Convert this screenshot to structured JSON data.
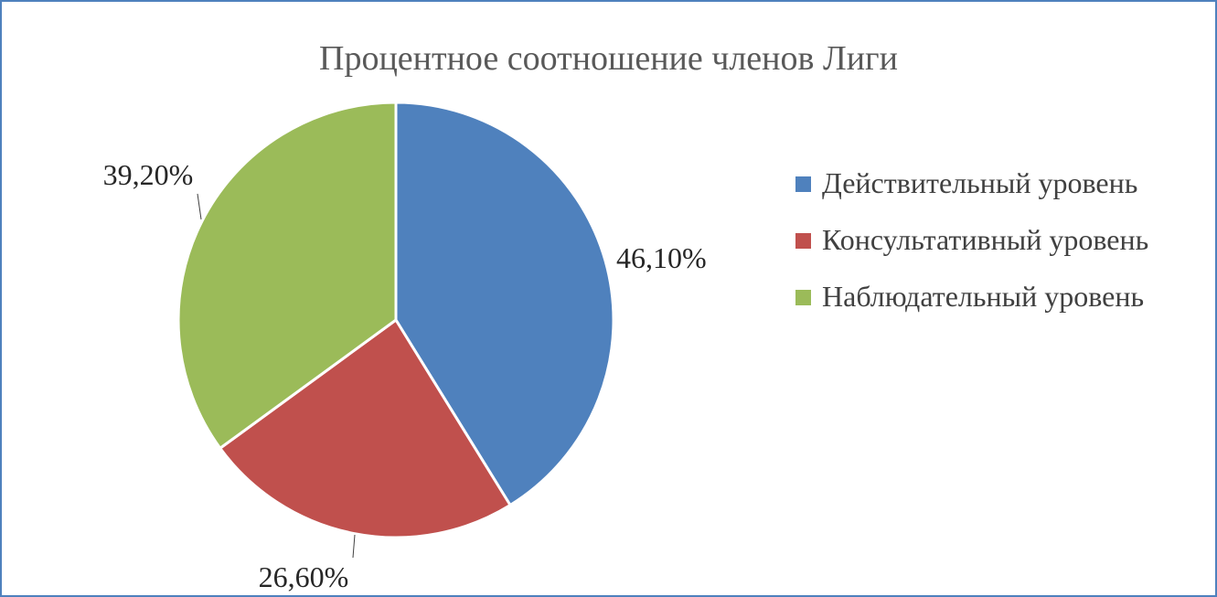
{
  "chart_data": {
    "type": "pie",
    "title": "Процентное соотношение членов Лиги",
    "slices": [
      {
        "label": "Действительный уровень",
        "value": 46.1,
        "data_label": "46,10%",
        "color": "#4f81bd"
      },
      {
        "label": "Консультативный уровень",
        "value": 26.6,
        "data_label": "26,60%",
        "color": "#c0504d"
      },
      {
        "label": "Наблюдательный уровень",
        "value": 39.2,
        "data_label": "39,20%",
        "color": "#9bbb59"
      }
    ],
    "legend_position": "right"
  }
}
